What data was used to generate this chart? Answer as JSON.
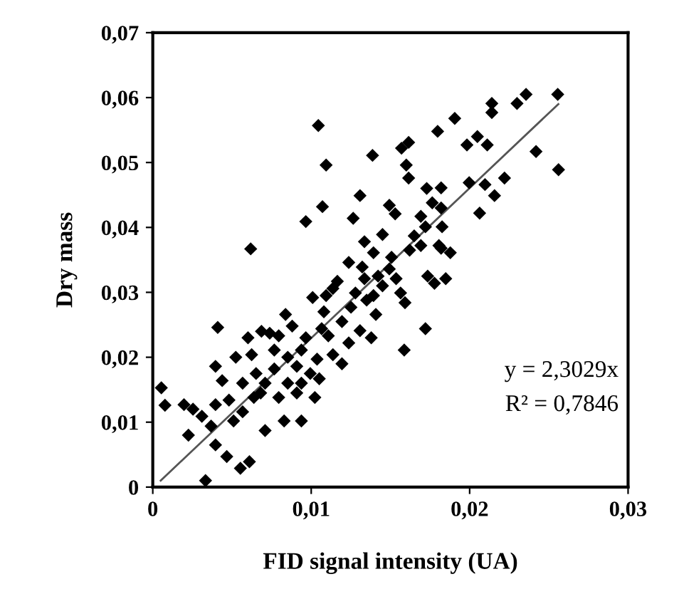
{
  "chart_data": {
    "type": "scatter",
    "xlabel": "FID signal intensity (UA)",
    "ylabel": "Dry mass",
    "xlim": [
      0,
      0.03
    ],
    "ylim": [
      0,
      0.07
    ],
    "xticks": [
      0,
      {
        "value": 0.01,
        "label": "0,01"
      },
      {
        "value": 0.02,
        "label": "0,02"
      },
      {
        "value": 0.03,
        "label": "0,03"
      }
    ],
    "yticks": [
      0,
      {
        "value": 0.01,
        "label": "0,01"
      },
      {
        "value": 0.02,
        "label": "0,02"
      },
      {
        "value": 0.03,
        "label": "0,03"
      },
      {
        "value": 0.04,
        "label": "0,04"
      },
      {
        "value": 0.05,
        "label": "0,05"
      },
      {
        "value": 0.06,
        "label": "0,06"
      },
      {
        "value": 0.07,
        "label": "0,07"
      }
    ],
    "grid": false,
    "legend": false,
    "marker": "diamond",
    "annotations": [
      "y = 2,3029x",
      "R² = 0,7846"
    ],
    "series": [
      {
        "type": "scatter",
        "color": "#000000",
        "x": [
          0.01045,
          0.01094,
          0.01071,
          0.00966,
          0.00618,
          0.01387,
          0.01308,
          0.01265,
          0.01493,
          0.0153,
          0.0145,
          0.0157,
          0.01615,
          0.016,
          0.01615,
          0.01798,
          0.01906,
          0.01729,
          0.0182,
          0.01764,
          0.0182,
          0.01692,
          0.01721,
          0.01826,
          0.01983,
          0.02049,
          0.02111,
          0.01997,
          0.02097,
          0.02157,
          0.02063,
          0.0222,
          0.0214,
          0.0214,
          0.02299,
          0.02356,
          0.02556,
          0.02419,
          0.02561,
          0.01336,
          0.0165,
          0.01806,
          0.00054,
          0.00077,
          0.00197,
          0.00225,
          0.00333,
          0.0041,
          0.00396,
          0.00438,
          0.00396,
          0.0031,
          0.00396,
          0.00467,
          0.00553,
          0.0061,
          0.00524,
          0.00601,
          0.00686,
          0.00624,
          0.00709,
          0.00829,
          0.00938,
          0.0051,
          0.00567,
          0.00481,
          0.00638,
          0.00709,
          0.00767,
          0.00652,
          0.00795,
          0.00852,
          0.00909,
          0.00838,
          0.0088,
          0.00795,
          0.00767,
          0.00852,
          0.00938,
          0.00966,
          0.00909,
          0.01009,
          0.0108,
          0.01137,
          0.01165,
          0.01094,
          0.01066,
          0.01108,
          0.01037,
          0.01051,
          0.01023,
          0.01137,
          0.01194,
          0.01237,
          0.01322,
          0.01279,
          0.01251,
          0.01336,
          0.0135,
          0.01308,
          0.01393,
          0.01422,
          0.01393,
          0.01408,
          0.01379,
          0.01493,
          0.01507,
          0.0145,
          0.01564,
          0.01592,
          0.01587,
          0.01621,
          0.01721,
          0.01692,
          0.01735,
          0.01778,
          0.01849,
          0.0182,
          0.01878,
          0.00738,
          0.00681,
          0.00938,
          0.00994,
          0.01194,
          0.01237,
          0.01536,
          0.00567,
          0.00368,
          0.00254
        ],
        "values": [
          0.0557,
          0.0496,
          0.0432,
          0.0409,
          0.0367,
          0.0511,
          0.0449,
          0.0414,
          0.0434,
          0.0421,
          0.0389,
          0.0522,
          0.0531,
          0.0496,
          0.0476,
          0.0548,
          0.0568,
          0.046,
          0.0461,
          0.0438,
          0.043,
          0.0417,
          0.0401,
          0.0401,
          0.0527,
          0.054,
          0.0527,
          0.0469,
          0.0466,
          0.0449,
          0.0422,
          0.0476,
          0.0591,
          0.0577,
          0.0591,
          0.0605,
          0.0605,
          0.0517,
          0.0489,
          0.0378,
          0.0387,
          0.0372,
          0.0153,
          0.0126,
          0.0127,
          0.008,
          0.001,
          0.0246,
          0.0186,
          0.0164,
          0.0127,
          0.0109,
          0.0065,
          0.0047,
          0.0029,
          0.0039,
          0.02,
          0.023,
          0.024,
          0.0204,
          0.0087,
          0.0102,
          0.0102,
          0.0102,
          0.0116,
          0.0134,
          0.0138,
          0.016,
          0.0182,
          0.0175,
          0.0138,
          0.016,
          0.0145,
          0.0266,
          0.0248,
          0.0233,
          0.0211,
          0.02,
          0.0211,
          0.023,
          0.0186,
          0.0292,
          0.027,
          0.0306,
          0.0317,
          0.0295,
          0.0244,
          0.0233,
          0.0197,
          0.0167,
          0.0138,
          0.0204,
          0.0255,
          0.0346,
          0.0339,
          0.0299,
          0.0277,
          0.0321,
          0.0288,
          0.0241,
          0.0361,
          0.0325,
          0.0295,
          0.0266,
          0.023,
          0.0336,
          0.0354,
          0.031,
          0.0299,
          0.0284,
          0.0211,
          0.0365,
          0.0244,
          0.0372,
          0.0325,
          0.0314,
          0.0321,
          0.0368,
          0.0361,
          0.0237,
          0.0145,
          0.016,
          0.0175,
          0.019,
          0.0222,
          0.0321,
          0.016,
          0.0094,
          0.012
        ]
      },
      {
        "type": "line",
        "color": "#555555",
        "marker": "none",
        "x": [
          0.0005,
          0.0256
        ],
        "values": [
          0.001,
          0.059
        ]
      }
    ]
  }
}
